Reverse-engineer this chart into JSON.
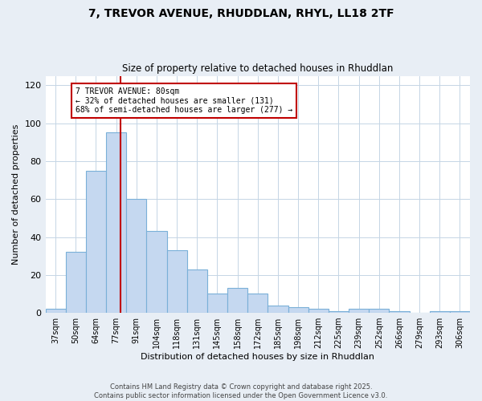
{
  "title_line1": "7, TREVOR AVENUE, RHUDDLAN, RHYL, LL18 2TF",
  "title_line2": "Size of property relative to detached houses in Rhuddlan",
  "xlabel": "Distribution of detached houses by size in Rhuddlan",
  "ylabel": "Number of detached properties",
  "categories": [
    "37sqm",
    "50sqm",
    "64sqm",
    "77sqm",
    "91sqm",
    "104sqm",
    "118sqm",
    "131sqm",
    "145sqm",
    "158sqm",
    "172sqm",
    "185sqm",
    "198sqm",
    "212sqm",
    "225sqm",
    "239sqm",
    "252sqm",
    "266sqm",
    "279sqm",
    "293sqm",
    "306sqm"
  ],
  "values": [
    2,
    32,
    75,
    95,
    60,
    43,
    33,
    23,
    10,
    13,
    10,
    4,
    3,
    2,
    1,
    2,
    2,
    1,
    0,
    1,
    1
  ],
  "bar_color": "#c5d8f0",
  "bar_edge_color": "#7ab0d8",
  "vline_color": "#c00000",
  "annotation_text": "7 TREVOR AVENUE: 80sqm\n← 32% of detached houses are smaller (131)\n68% of semi-detached houses are larger (277) →",
  "annotation_box_facecolor": "#ffffff",
  "annotation_box_edgecolor": "#c00000",
  "ylim": [
    0,
    125
  ],
  "yticks": [
    0,
    20,
    40,
    60,
    80,
    100,
    120
  ],
  "footer_line1": "Contains HM Land Registry data © Crown copyright and database right 2025.",
  "footer_line2": "Contains public sector information licensed under the Open Government Licence v3.0.",
  "bg_color": "#e8eef5",
  "plot_bg_color": "#ffffff",
  "grid_color": "#c5d5e5"
}
